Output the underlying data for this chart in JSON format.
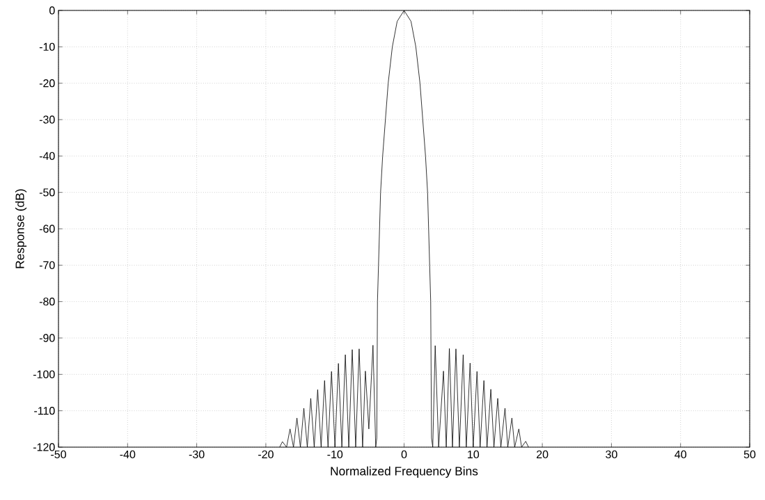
{
  "chart_data": {
    "type": "line",
    "xlabel": "Normalized Frequency Bins",
    "ylabel": "Response (dB)",
    "xlim": [
      -50,
      50
    ],
    "ylim": [
      -120,
      0
    ],
    "xticks": [
      -50,
      -40,
      -30,
      -20,
      -10,
      0,
      10,
      20,
      30,
      40,
      50
    ],
    "yticks": [
      -120,
      -110,
      -100,
      -90,
      -80,
      -70,
      -60,
      -50,
      -40,
      -30,
      -20,
      -10,
      0
    ],
    "grid": true,
    "line_style": "solid",
    "series": [
      {
        "color": "#000000",
        "x": [
          -18,
          -17.6,
          -17,
          -16.5,
          -16,
          -15.5,
          -15,
          -14.5,
          -14,
          -13.5,
          -13,
          -12.5,
          -12,
          -11.5,
          -11,
          -10.5,
          -10,
          -9.5,
          -9,
          -8.5,
          -8,
          -7.5,
          -7,
          -6.5,
          -6,
          -5.6,
          -5.1,
          -4.5,
          -4.1,
          -3.95,
          -3.85,
          -3.7,
          -3.55,
          -3.4,
          -3.1,
          -2.7,
          -2.3,
          -1.7,
          -1,
          0,
          1,
          1.7,
          2.3,
          2.7,
          3.1,
          3.4,
          3.55,
          3.7,
          3.85,
          3.97,
          4.15,
          4.5,
          5.0,
          5.7,
          6.1,
          6.55,
          7,
          7.5,
          8,
          8.55,
          9,
          9.55,
          10,
          10.55,
          11,
          11.55,
          12,
          12.55,
          13,
          13.55,
          14,
          14.6,
          15,
          15.6,
          16,
          16.6,
          17,
          17.6,
          18
        ],
        "values": [
          -120,
          -118.5,
          -120,
          -115,
          -120,
          -112,
          -120,
          -109.3,
          -120,
          -106.6,
          -120,
          -104.2,
          -120,
          -101.7,
          -120,
          -99.2,
          -120,
          -97,
          -120,
          -94.6,
          -120,
          -93.2,
          -120,
          -93,
          -120,
          -99.1,
          -115,
          -92,
          -120,
          -117.5,
          -80,
          -70,
          -60,
          -50,
          -40,
          -30,
          -20,
          -10,
          -3,
          0,
          -3,
          -10,
          -20,
          -30,
          -40,
          -50,
          -60,
          -70,
          -80,
          -117.5,
          -120,
          -92.1,
          -120,
          -99.1,
          -120,
          -92.9,
          -120,
          -93,
          -120,
          -94.6,
          -120,
          -96.9,
          -120,
          -99.2,
          -120,
          -101.7,
          -120,
          -104.1,
          -120,
          -106.6,
          -120,
          -109.3,
          -120,
          -112,
          -120,
          -115,
          -120,
          -118.4,
          -120
        ]
      }
    ]
  }
}
